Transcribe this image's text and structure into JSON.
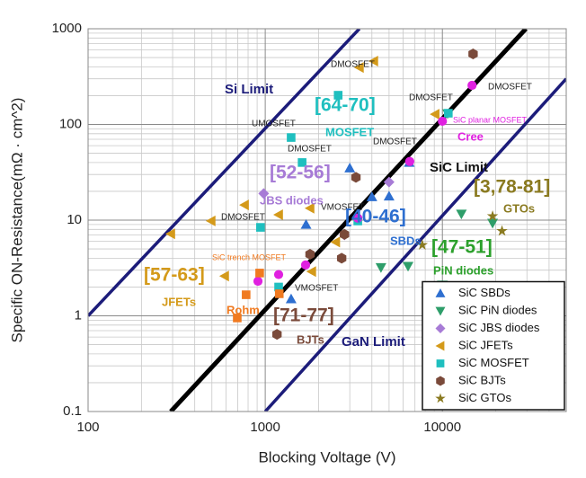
{
  "chart_data": {
    "type": "scatter",
    "x_label": "Blocking Voltage (V)",
    "y_label": "Specific ON-Resistance(mΩ · cm^2)",
    "xlog": true,
    "ylog": true,
    "grid": true,
    "minor_grid": true,
    "xlim": [
      100,
      50000
    ],
    "ylim": [
      0.1,
      1000
    ],
    "xticks": [
      100,
      1000,
      10000
    ],
    "yticks": [
      0.1,
      1,
      10,
      100,
      1000
    ],
    "legend": "lower right",
    "limit_lines": [
      {
        "label": "Si Limit",
        "color": "#1c1c7a",
        "x": [
          100,
          3400
        ],
        "y": [
          1,
          1000
        ]
      },
      {
        "label": "SiC Limit",
        "color": "#000000",
        "x": [
          293,
          29600
        ],
        "y": [
          0.1,
          1000
        ]
      },
      {
        "label": "GaN Limit",
        "color": "#1c1c7a",
        "x": [
          1000,
          50000
        ],
        "y": [
          0.1,
          300
        ]
      }
    ],
    "series": [
      {
        "name": "SiC SBDs",
        "color": "#2e6fd0",
        "marker": "triangle-up",
        "x": [
          1400,
          1700,
          3000,
          4000,
          5000,
          6500
        ],
        "y": [
          1.5,
          9,
          35,
          17.5,
          17.8,
          40
        ]
      },
      {
        "name": "SiC PiN diodes",
        "color": "#2e9e6a",
        "marker": "triangle-down",
        "x": [
          4500,
          6400,
          12800,
          19200,
          10000,
          10700
        ],
        "y": [
          3.2,
          3.3,
          11.6,
          9.3,
          2.1,
          130
        ]
      },
      {
        "name": "SiC JBS diodes",
        "color": "#a77bd6",
        "marker": "diamond",
        "x": [
          980,
          2800,
          5000
        ],
        "y": [
          19,
          7,
          25
        ]
      },
      {
        "name": "SiC JFETs",
        "color": "#d49a1a",
        "marker": "triangle-left",
        "x": [
          293,
          495,
          764,
          1190,
          1790,
          3400,
          4100,
          2500,
          1830,
          590,
          9100
        ],
        "y": [
          7.2,
          9.8,
          14.4,
          11.4,
          13.3,
          394,
          459,
          5.9,
          2.9,
          2.6,
          128
        ]
      },
      {
        "name": "SiC MOSFET",
        "color": "#1fbfbf",
        "marker": "square",
        "x": [
          2580,
          1400,
          1615,
          940,
          3330,
          1190,
          10800
        ],
        "y": [
          202,
          73,
          40,
          8.4,
          9.8,
          2.0,
          131
        ]
      },
      {
        "name": "SiC BJTs",
        "color": "#7a4a3a",
        "marker": "hexagon",
        "x": [
          14900,
          3250,
          2800,
          2700,
          1790,
          1165
        ],
        "y": [
          546,
          28,
          7.1,
          4.0,
          4.4,
          0.64
        ]
      },
      {
        "name": "SiC GTOs",
        "color": "#8a7a20",
        "marker": "star",
        "x": [
          19200,
          21700,
          7700
        ],
        "y": [
          11,
          7.7,
          5.5
        ]
      },
      {
        "name": "Cree",
        "color": "#e020e0",
        "marker": "circle",
        "show_in_legend": false,
        "x": [
          14700,
          6540,
          10000,
          3330,
          1690,
          1190,
          910
        ],
        "y": [
          256,
          41,
          108,
          10.5,
          3.4,
          2.7,
          2.3
        ]
      },
      {
        "name": "Rohm",
        "color": "#f07a20",
        "marker": "square",
        "show_in_legend": false,
        "x": [
          930,
          780,
          695,
          1200
        ],
        "y": [
          2.8,
          1.66,
          0.95,
          1.7
        ]
      }
    ],
    "annotations": [
      "DMOSFET",
      "[64-70]",
      "MOSFET",
      "UMOSFET",
      "DMOSFET",
      "DMOSFET",
      "DMOSFET",
      "SiC planar MOSFET",
      "DMOSFET",
      "[52-56]",
      "JBS diodes",
      "VMOSFET",
      "DMOSFET",
      "[40-46]",
      "SBDs",
      "[3,78-81]",
      "GTOs",
      "[47-51]",
      "PiN diodes",
      "SiC trench MOSFET",
      "[57-63]",
      "JFETs",
      "VMOSFET",
      "[71-77]",
      "BJTs"
    ]
  }
}
